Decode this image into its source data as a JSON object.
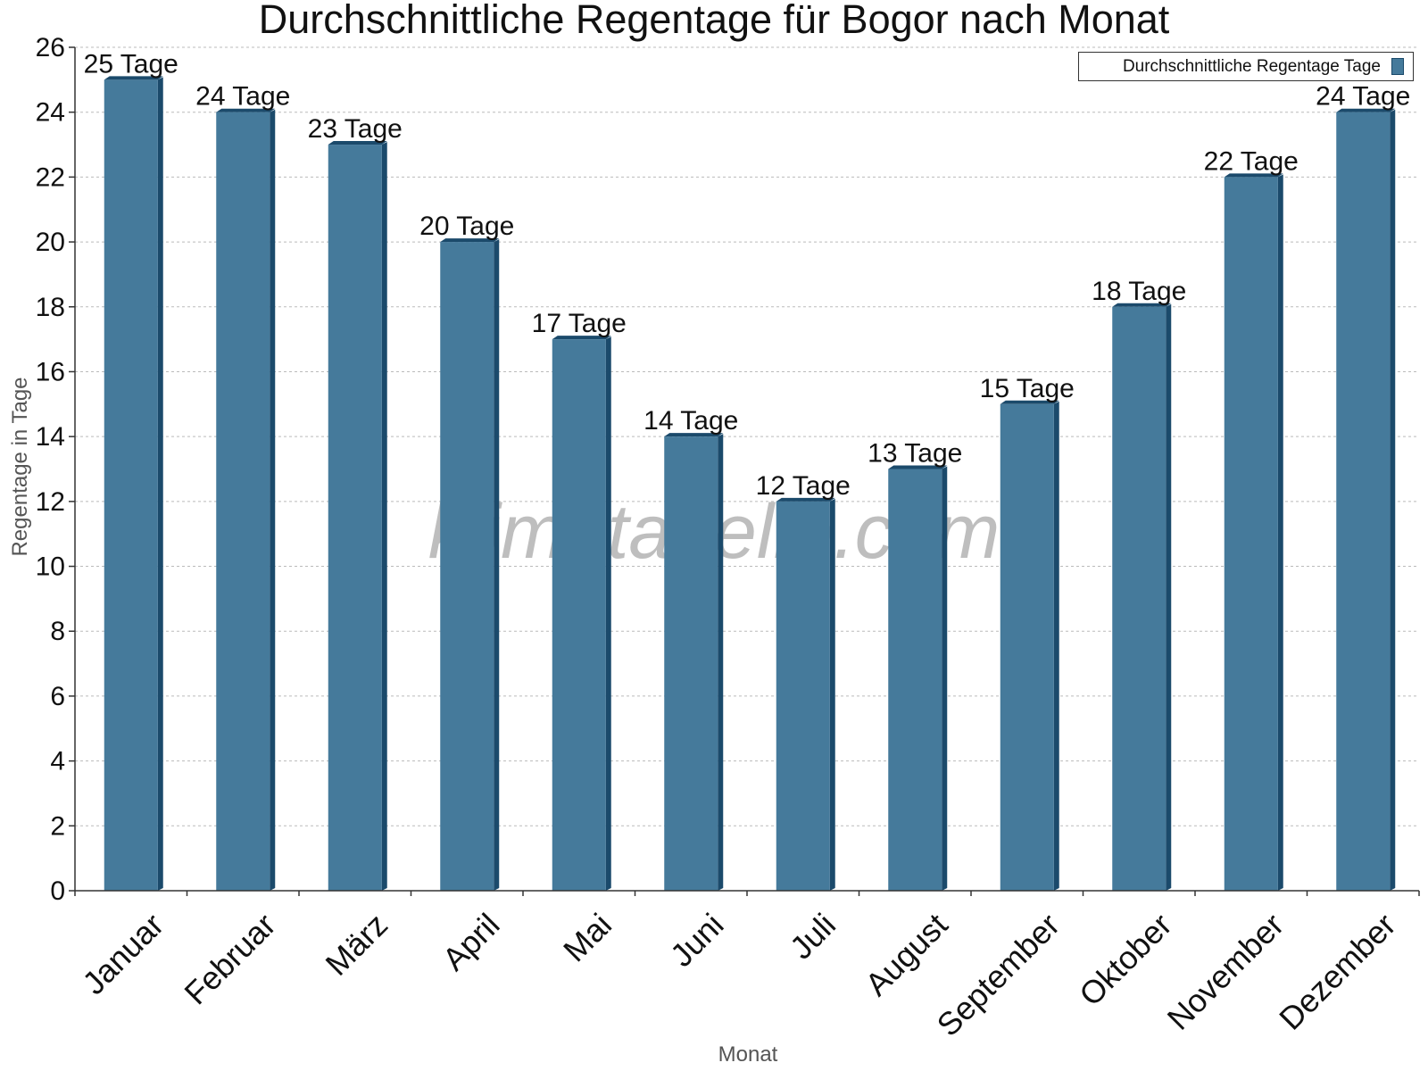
{
  "chart_data": {
    "type": "bar",
    "title": "Durchschnittliche Regentage für Bogor nach Monat",
    "xlabel": "Monat",
    "ylabel": "Regentage in Tage",
    "categories": [
      "Januar",
      "Februar",
      "März",
      "April",
      "Mai",
      "Juni",
      "Juli",
      "August",
      "September",
      "Oktober",
      "November",
      "Dezember"
    ],
    "series": [
      {
        "name": "Durchschnittliche Regentage Tage",
        "values": [
          25,
          24,
          23,
          20,
          17,
          14,
          12,
          13,
          15,
          18,
          22,
          24
        ],
        "labels": [
          "25 Tage",
          "24 Tage",
          "23 Tage",
          "20 Tage",
          "17 Tage",
          "14 Tage",
          "12 Tage",
          "13 Tage",
          "15 Tage",
          "18 Tage",
          "22 Tage",
          "24 Tage"
        ]
      }
    ],
    "ylim": [
      0,
      26
    ],
    "yticks": [
      0,
      2,
      4,
      6,
      8,
      10,
      12,
      14,
      16,
      18,
      20,
      22,
      24,
      26
    ],
    "grid": true,
    "legend_position": "top-right",
    "colors": {
      "bar": "#457a9b",
      "bar_side": "#1b4a6b",
      "grid": "#bbbbbb"
    }
  },
  "watermark": "klimatabelle.com"
}
